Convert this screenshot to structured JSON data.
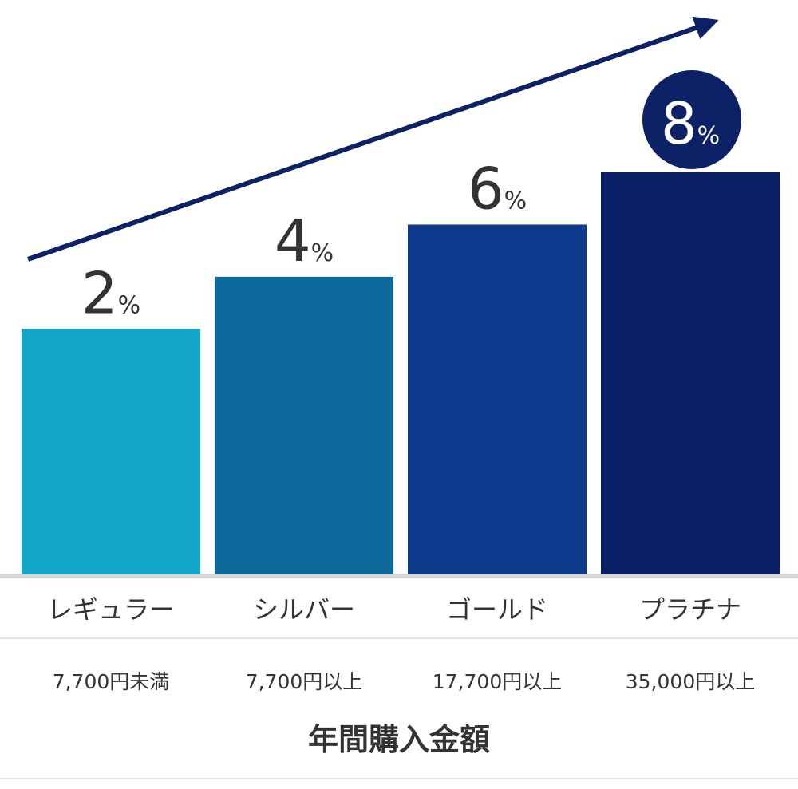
{
  "chart_data": {
    "type": "bar",
    "categories": [
      "レギュラー",
      "シルバー",
      "ゴールド",
      "プラチナ"
    ],
    "category_sublabels": [
      "7,700円未満",
      "7,700円以上",
      "17,700円以上",
      "35,000円以上"
    ],
    "x_label": "年間購入金額",
    "values": [
      2,
      4,
      6,
      8
    ],
    "value_labels": [
      "2%",
      "4%",
      "6%",
      "8%"
    ],
    "colors": [
      "#11a5c8",
      "#0e6a9c",
      "#0d3a8c",
      "#0a1f66"
    ],
    "ylim": [
      -7.4,
      14.6
    ]
  }
}
